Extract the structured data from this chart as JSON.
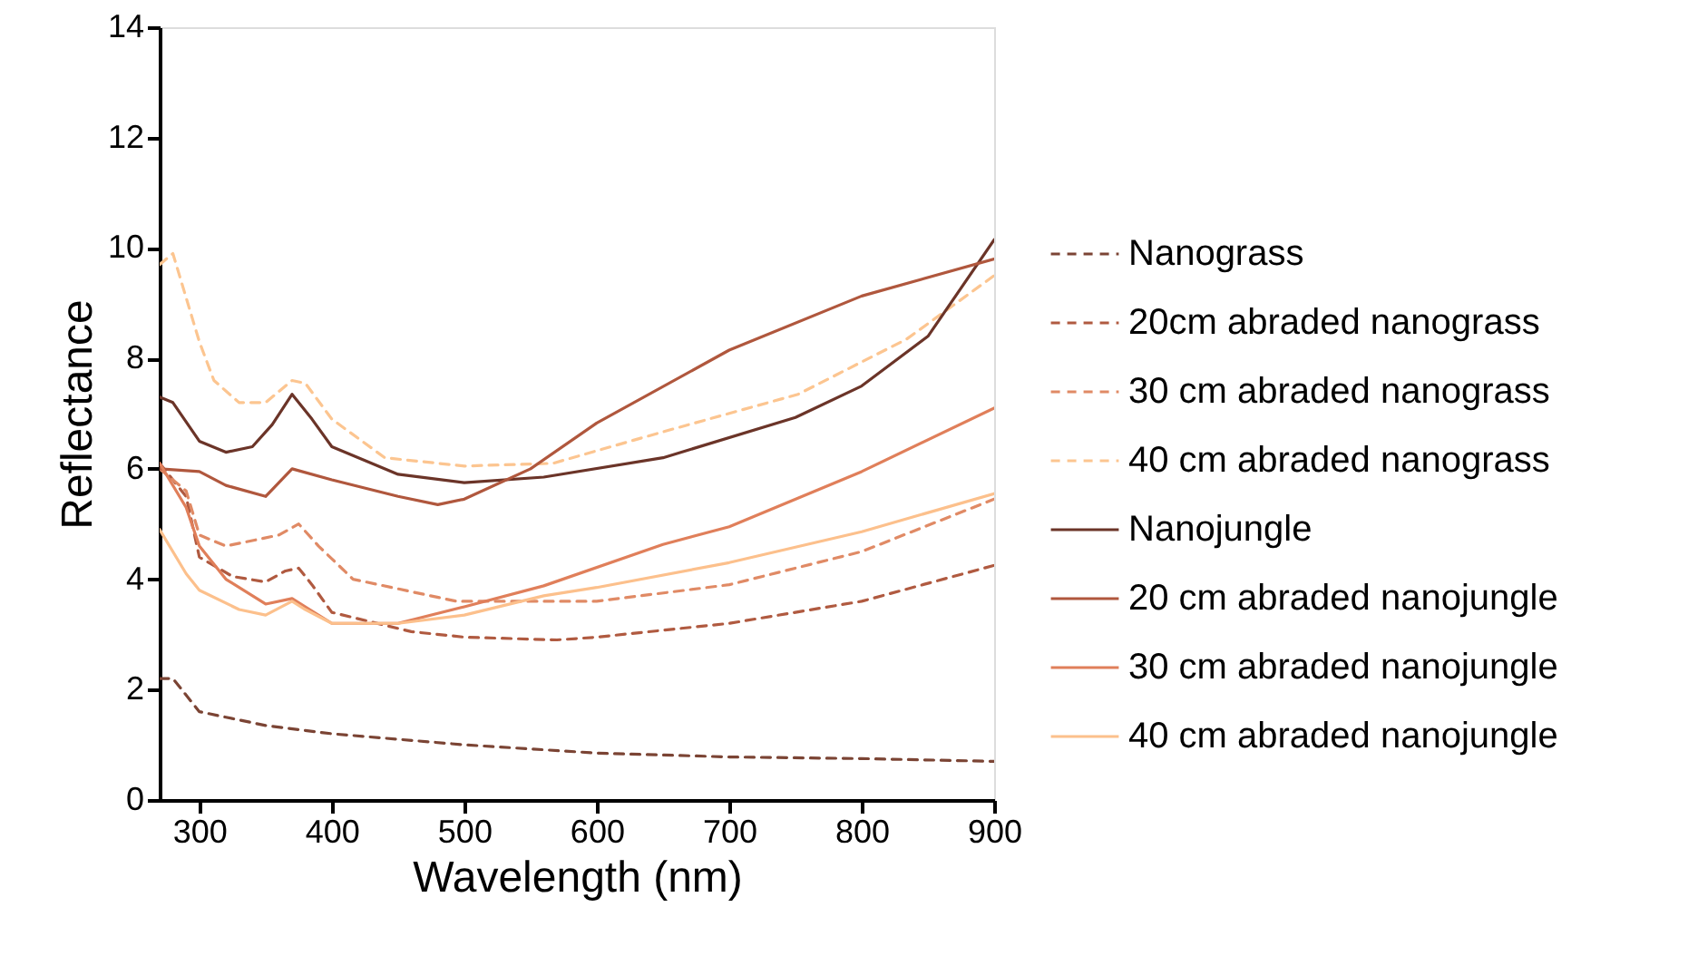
{
  "chart_data": {
    "type": "line",
    "xlabel": "Wavelength (nm)",
    "ylabel": "Reflectance",
    "xlim": [
      270,
      900
    ],
    "xticks": [
      300,
      400,
      500,
      600,
      700,
      800,
      900
    ],
    "ylim": [
      0,
      14
    ],
    "yticks": [
      0,
      2,
      4,
      6,
      8,
      10,
      12,
      14
    ],
    "grid": false,
    "legend": "right",
    "marker": "none",
    "series": [
      {
        "name": "Nanograss",
        "color": "#7b4434",
        "line_style": "dashed",
        "x": [
          270,
          280,
          300,
          350,
          400,
          500,
          600,
          700,
          800,
          900
        ],
        "values": [
          2.2,
          2.2,
          1.6,
          1.35,
          1.2,
          1.0,
          0.85,
          0.78,
          0.75,
          0.7
        ]
      },
      {
        "name": "20cm abraded nanograss",
        "color": "#b05a40",
        "line_style": "dashed",
        "x": [
          270,
          290,
          300,
          325,
          350,
          365,
          375,
          385,
          400,
          460,
          500,
          570,
          600,
          700,
          800,
          900
        ],
        "values": [
          6.1,
          5.5,
          4.4,
          4.05,
          3.95,
          4.15,
          4.2,
          3.9,
          3.4,
          3.05,
          2.95,
          2.9,
          2.95,
          3.2,
          3.6,
          4.25
        ]
      },
      {
        "name": "30 cm abraded nanograss",
        "color": "#e08a65",
        "line_style": "dashed",
        "x": [
          270,
          290,
          300,
          320,
          340,
          360,
          375,
          390,
          416,
          494,
          570,
          600,
          700,
          800,
          900
        ],
        "values": [
          6.0,
          5.6,
          4.8,
          4.6,
          4.7,
          4.8,
          5.0,
          4.6,
          4.0,
          3.6,
          3.6,
          3.6,
          3.9,
          4.5,
          5.45
        ]
      },
      {
        "name": "40 cm abraded nanograss",
        "color": "#fcc590",
        "line_style": "dashed",
        "x": [
          270,
          280,
          300,
          311,
          330,
          350,
          370,
          380,
          400,
          440,
          500,
          567,
          650,
          752,
          834,
          900
        ],
        "values": [
          9.7,
          9.9,
          8.3,
          7.6,
          7.2,
          7.2,
          7.6,
          7.55,
          6.9,
          6.2,
          6.05,
          6.1,
          6.67,
          7.35,
          8.35,
          9.5
        ]
      },
      {
        "name": "Nanojungle",
        "color": "#6b3428",
        "line_style": "solid",
        "x": [
          270,
          280,
          300,
          320,
          340,
          355,
          370,
          385,
          400,
          450,
          500,
          560,
          650,
          750,
          800,
          850,
          900
        ],
        "values": [
          7.3,
          7.2,
          6.5,
          6.3,
          6.4,
          6.8,
          7.35,
          6.9,
          6.4,
          5.9,
          5.75,
          5.85,
          6.2,
          6.93,
          7.5,
          8.4,
          10.15
        ]
      },
      {
        "name": "20 cm abraded nanojungle",
        "color": "#b0573d",
        "line_style": "solid",
        "x": [
          270,
          300,
          320,
          350,
          370,
          400,
          450,
          480,
          500,
          550,
          600,
          700,
          800,
          900
        ],
        "values": [
          6.0,
          5.95,
          5.7,
          5.5,
          6.0,
          5.8,
          5.5,
          5.35,
          5.45,
          6.0,
          6.83,
          8.15,
          9.13,
          9.8
        ]
      },
      {
        "name": "30 cm abraded nanojungle",
        "color": "#e07f5a",
        "line_style": "solid",
        "x": [
          270,
          290,
          300,
          320,
          350,
          370,
          380,
          400,
          450,
          500,
          560,
          650,
          700,
          800,
          900
        ],
        "values": [
          6.1,
          5.3,
          4.6,
          4.0,
          3.55,
          3.65,
          3.5,
          3.2,
          3.2,
          3.5,
          3.88,
          4.63,
          4.95,
          5.95,
          7.1
        ]
      },
      {
        "name": "40 cm abraded nanojungle",
        "color": "#fcc08c",
        "line_style": "solid",
        "x": [
          270,
          290,
          300,
          330,
          350,
          370,
          380,
          400,
          450,
          500,
          560,
          600,
          700,
          800,
          900
        ],
        "values": [
          4.9,
          4.1,
          3.8,
          3.45,
          3.35,
          3.6,
          3.45,
          3.2,
          3.2,
          3.35,
          3.7,
          3.85,
          4.3,
          4.86,
          5.55
        ]
      }
    ]
  }
}
